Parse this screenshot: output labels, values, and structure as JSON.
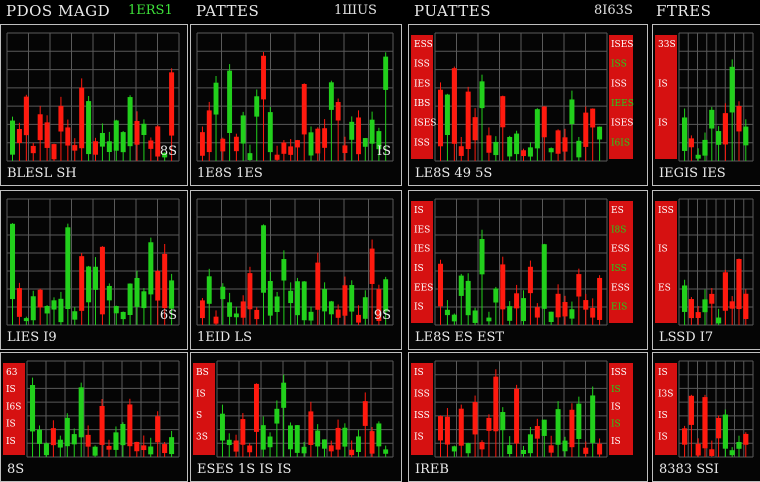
{
  "header": {
    "col1_title": "PDOS MAGD",
    "col1_ticker": "1ERS1",
    "col2_title": "PATTES",
    "col2_ticker": "1ШUS",
    "col3_title": "PUATTES",
    "col3_ticker": "8I63S",
    "col4_title": "FTRES"
  },
  "panels": [
    {
      "id": "p11",
      "footer": "BLESL SH",
      "side_tag": "8S"
    },
    {
      "id": "p12",
      "footer": "1E8S 1ES",
      "side_tag": "IS"
    },
    {
      "id": "p13",
      "footer": "LE8S  49  5S",
      "left_labels": [
        "ESS",
        "ISS",
        "IES",
        "IBS",
        "ISES",
        "ISS"
      ],
      "right_labels": [
        "ISES",
        "ISS",
        "ISS",
        "IEES",
        "ISES",
        "I6IS"
      ]
    },
    {
      "id": "p14",
      "footer": "IEGIS  IES",
      "left_labels": [
        "33S",
        "IS",
        "IS"
      ]
    },
    {
      "id": "p21",
      "footer": "LIES  I9",
      "side_tag": "6S"
    },
    {
      "id": "p22",
      "footer": "1EID LS",
      "side_tag": "9S"
    },
    {
      "id": "p23",
      "footer": "LE8S  ES  ЕST",
      "left_labels": [
        "IS",
        "IES",
        "IES",
        "IS",
        "EES",
        "IS"
      ],
      "right_labels": [
        "ES",
        "I8S",
        "ESS",
        "ISS",
        "ESS",
        "EIS"
      ]
    },
    {
      "id": "p24",
      "footer": "LSSD  I7",
      "left_labels": [
        "ISS",
        "IS",
        "ES"
      ]
    },
    {
      "id": "p31",
      "footer": "8S",
      "left_labels": [
        "63",
        "IS",
        "I6S",
        "IS",
        "IS"
      ]
    },
    {
      "id": "p32",
      "footer": "ESES  1S  IS  IS",
      "left_labels": [
        "BS",
        "IS",
        "S",
        "3S"
      ]
    },
    {
      "id": "p33",
      "footer": "IREB",
      "left_labels": [
        "IS",
        "ISS",
        "ISS",
        "IS"
      ],
      "right_labels": [
        "ISS",
        "IS",
        "IS",
        "IS",
        "IS"
      ]
    },
    {
      "id": "p34",
      "footer": "8383  SSI",
      "left_labels": [
        "IS",
        "I3S",
        "IS",
        "IS"
      ]
    }
  ],
  "colors": {
    "up": "#22d01c",
    "down": "#ff1a0f",
    "grid": "#5a5a5a",
    "label_box": "#d61111"
  }
}
